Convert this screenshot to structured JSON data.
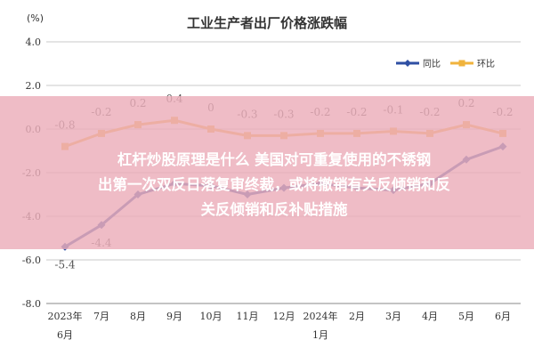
{
  "chart_data": {
    "type": "line",
    "title": "工业生产者出厂价格涨跌幅",
    "unit_label": "(%)",
    "categories": [
      [
        "2023年",
        "6月"
      ],
      [
        "7月"
      ],
      [
        "8月"
      ],
      [
        "9月"
      ],
      [
        "10月"
      ],
      [
        "11月"
      ],
      [
        "12月"
      ],
      [
        "2024年",
        "1月"
      ],
      [
        "2月"
      ],
      [
        "3月"
      ],
      [
        "4月"
      ],
      [
        "5月"
      ],
      [
        "6月"
      ]
    ],
    "ylim": [
      -8.0,
      4.0
    ],
    "yticks": [
      "4.0",
      "2.0",
      "0.0",
      "-2.0",
      "-4.0",
      "-6.0",
      "-8.0"
    ],
    "legend_position": "top-right",
    "series": [
      {
        "name": "同比",
        "color": "#2e4fa3",
        "values": [
          -5.4,
          -4.4,
          -3.0,
          -2.5,
          -2.6,
          -3.0,
          -2.7,
          -2.5,
          -2.7,
          -2.8,
          -2.5,
          -1.4,
          -0.8
        ],
        "labels": [
          "-5.4",
          "-4.4",
          "",
          "",
          "",
          "",
          "",
          "",
          "",
          "",
          "",
          "",
          ""
        ]
      },
      {
        "name": "环比",
        "color": "#f0b33c",
        "values": [
          -0.8,
          -0.2,
          0.2,
          0.4,
          0.0,
          -0.3,
          -0.3,
          -0.2,
          -0.2,
          -0.1,
          -0.2,
          0.2,
          -0.2
        ],
        "labels": [
          "-0.8",
          "-0.2",
          "0.2",
          "0.4",
          "0",
          "-0.3",
          "-0.3",
          "-0.2",
          "-0.2",
          "-0.1",
          "-0.2",
          "0.2",
          "-0.2"
        ]
      }
    ]
  },
  "overlay": {
    "line1": "杠杆炒股原理是什么 美国对可重复使用的不锈钢",
    "line2": "出第一次双反日落复审终裁，或将撤销有关反倾销和反",
    "line3": "关反倾销和反补贴措施"
  }
}
